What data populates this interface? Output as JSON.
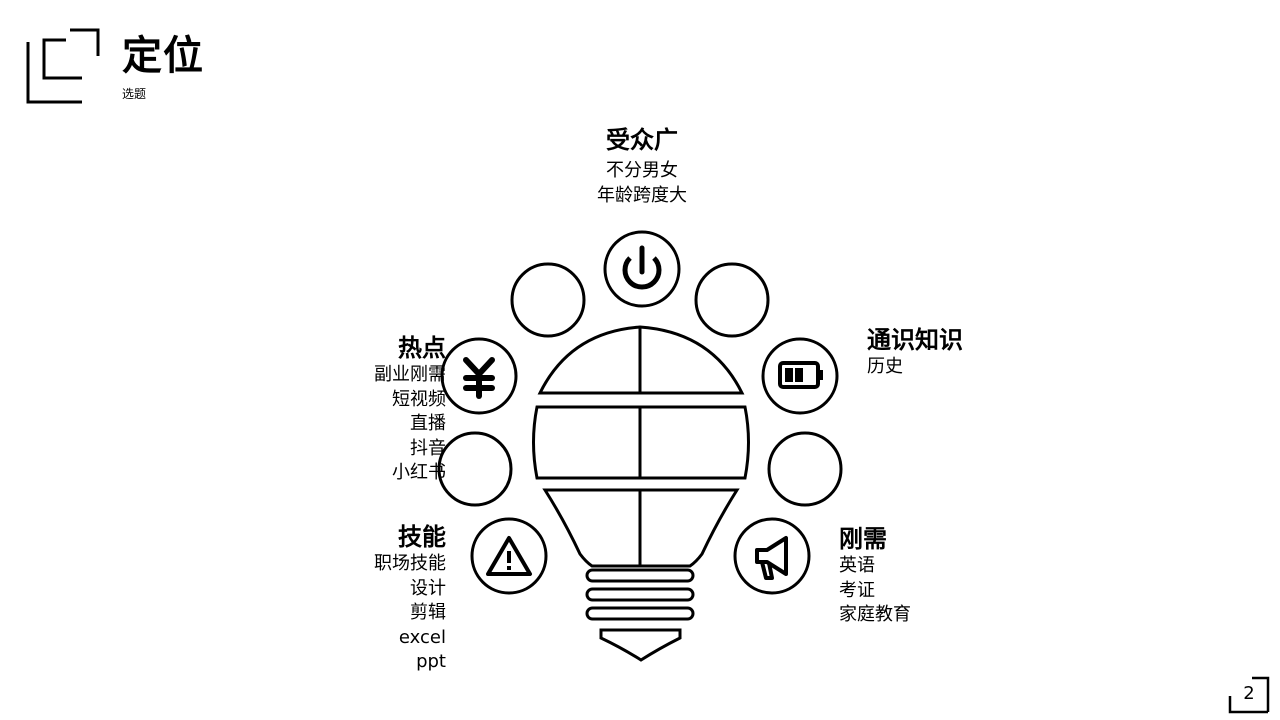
{
  "page": {
    "title": "定位",
    "subtitle": "选题",
    "page_number": "2"
  },
  "diagram": {
    "top": {
      "heading": "受众广",
      "lines": [
        "不分男女",
        "年龄跨度大"
      ]
    },
    "left_top": {
      "heading": "热点",
      "lines": [
        "副业刚需",
        "短视频",
        "直播",
        "抖音",
        "小红书"
      ]
    },
    "left_bottom": {
      "heading": "技能",
      "lines": [
        "职场技能",
        "设计",
        "剪辑",
        "excel",
        "ppt"
      ]
    },
    "right_top": {
      "heading": "通识知识",
      "lines": [
        "历史"
      ]
    },
    "right_bottom": {
      "heading": "刚需",
      "lines": [
        "英语",
        "考证",
        "家庭教育"
      ]
    },
    "icons": [
      "power-icon",
      "yen-icon",
      "battery-icon",
      "warning-icon",
      "megaphone-icon"
    ]
  }
}
